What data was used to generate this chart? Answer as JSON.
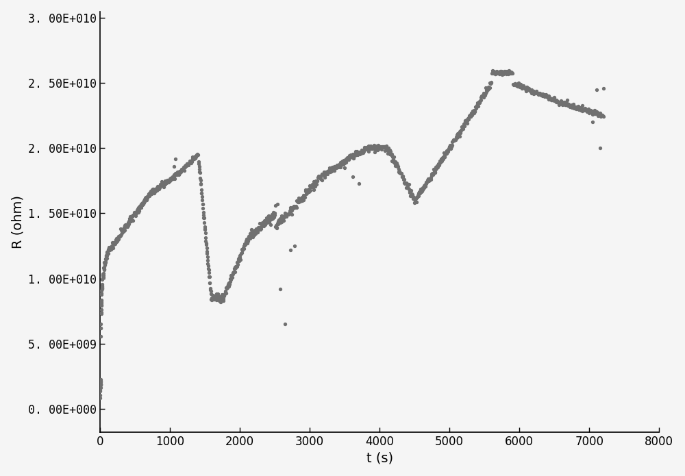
{
  "title": "",
  "xlabel": "t (s)",
  "ylabel": "R (ohm)",
  "xlim": [
    0,
    8000
  ],
  "ylim": [
    -1800000000.0,
    30500000000.0
  ],
  "yticks": [
    0,
    5000000000.0,
    10000000000.0,
    15000000000.0,
    20000000000.0,
    25000000000.0,
    30000000000.0
  ],
  "ytick_labels": [
    "0. 00E+000",
    "5. 00E+009",
    "1. 00E+010",
    "1. 50E+010",
    "2. 00E+010",
    "2. 50E+010",
    "3. 00E+010"
  ],
  "xticks": [
    0,
    1000,
    2000,
    3000,
    4000,
    5000,
    6000,
    7000,
    8000
  ],
  "dot_color": "#707070",
  "dot_size": 8,
  "background_color": "#f5f5f5"
}
